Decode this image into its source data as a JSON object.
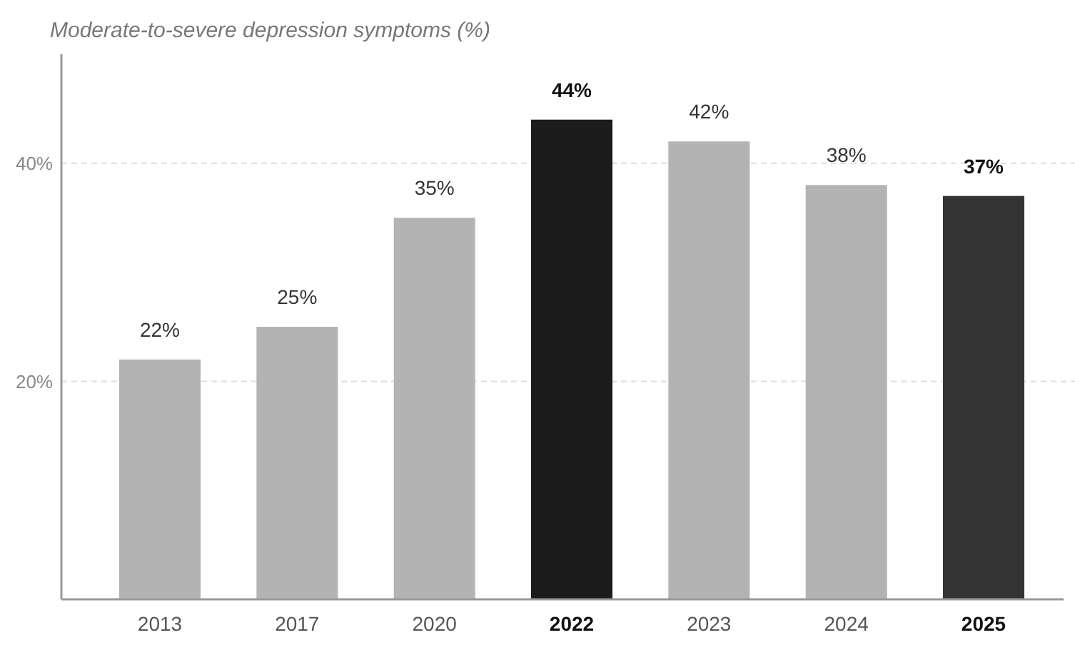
{
  "chart_data": {
    "type": "bar",
    "title": "Moderate-to-severe depression symptoms (%)",
    "categories": [
      "2013",
      "2017",
      "2020",
      "2022",
      "2023",
      "2024",
      "2025"
    ],
    "values": [
      22,
      25,
      35,
      44,
      42,
      38,
      37
    ],
    "colors": [
      "#b3b3b3",
      "#b3b3b3",
      "#b3b3b3",
      "#1c1c1c",
      "#b3b3b3",
      "#b3b3b3",
      "#333333"
    ],
    "value_labels": [
      "22%",
      "25%",
      "35%",
      "44%",
      "42%",
      "38%",
      "37%"
    ],
    "ylim": [
      0,
      50
    ],
    "yticks": [
      {
        "value": 20,
        "label": "20%"
      },
      {
        "value": 40,
        "label": "40%"
      }
    ],
    "grid": "y"
  }
}
